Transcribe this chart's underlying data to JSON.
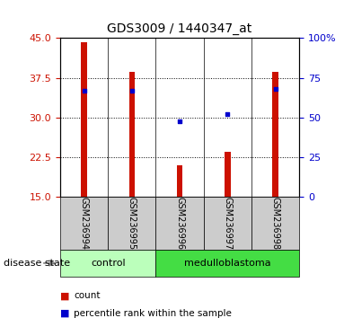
{
  "title": "GDS3009 / 1440347_at",
  "samples": [
    "GSM236994",
    "GSM236995",
    "GSM236996",
    "GSM236997",
    "GSM236998"
  ],
  "bar_values": [
    44.2,
    38.6,
    21.0,
    23.5,
    38.6
  ],
  "percentile_values": [
    67,
    67,
    48,
    52,
    68
  ],
  "ylim_left": [
    15,
    45
  ],
  "ylim_right": [
    0,
    100
  ],
  "yticks_left": [
    15,
    22.5,
    30,
    37.5,
    45
  ],
  "yticks_right": [
    0,
    25,
    50,
    75,
    100
  ],
  "bar_color": "#cc1100",
  "dot_color": "#0000cc",
  "bar_width": 0.12,
  "groups": [
    {
      "label": "control",
      "indices": [
        0,
        1
      ],
      "color": "#bbffbb"
    },
    {
      "label": "medulloblastoma",
      "indices": [
        2,
        3,
        4
      ],
      "color": "#44dd44"
    }
  ],
  "group_label": "disease state",
  "legend_items": [
    {
      "label": "count",
      "color": "#cc1100"
    },
    {
      "label": "percentile rank within the sample",
      "color": "#0000cc"
    }
  ],
  "tick_color_left": "#cc1100",
  "tick_color_right": "#0000cc",
  "sample_box_color": "#cccccc"
}
